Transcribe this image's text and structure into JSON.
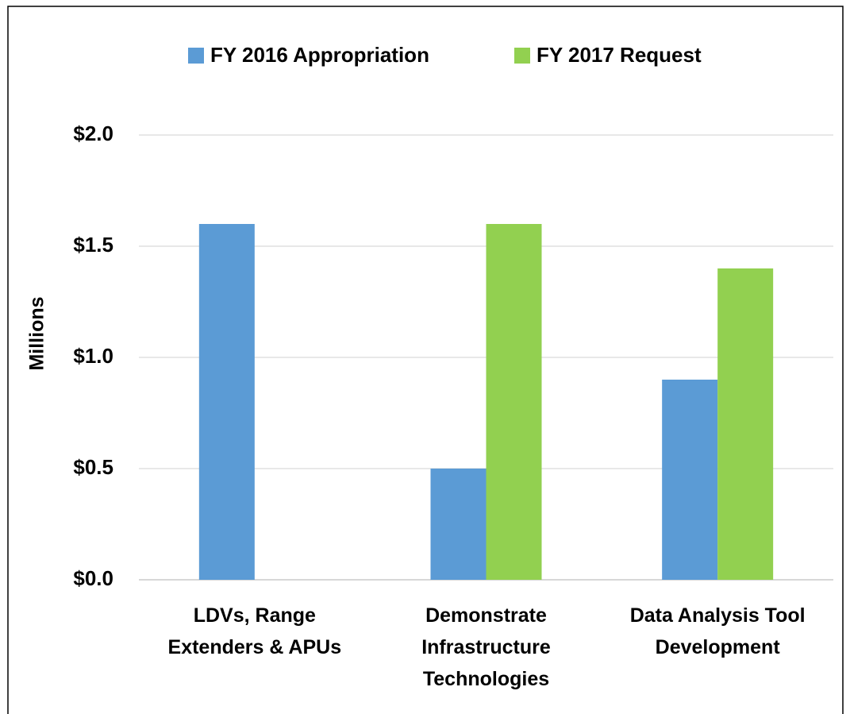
{
  "chart_data": {
    "type": "bar",
    "y_label": "Millions",
    "categories": [
      "LDVs, Range Extenders & APUs",
      "Demonstrate Infrastructure Technologies",
      "Data Analysis Tool Development"
    ],
    "series": [
      {
        "name": "FY 2016 Appropriation",
        "color": "#5b9bd5",
        "values": [
          1.6,
          0.5,
          0.9
        ]
      },
      {
        "name": "FY 2017 Request",
        "color": "#92d050",
        "values": [
          null,
          1.6,
          1.4
        ]
      }
    ],
    "ylim": [
      0,
      2
    ],
    "yticks": [
      {
        "value": 0,
        "label": "$0.0"
      },
      {
        "value": 0.5,
        "label": "$0.5"
      },
      {
        "value": 1,
        "label": "$1.0"
      },
      {
        "value": 1.5,
        "label": "$1.5"
      },
      {
        "value": 2,
        "label": "$2.0"
      }
    ],
    "grid": true,
    "legend": "top"
  }
}
